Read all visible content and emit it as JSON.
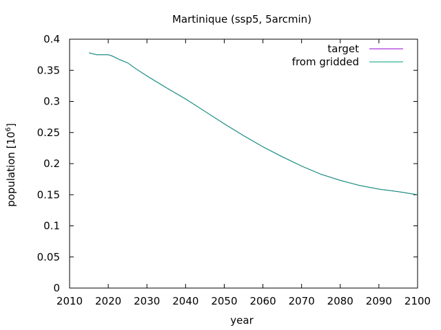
{
  "chart_data": {
    "type": "line",
    "title": "Martinique (ssp5, 5arcmin)",
    "xlabel": "year",
    "ylabel_main": "population [10",
    "ylabel_exp": "6",
    "ylabel_close": "]",
    "xlim": [
      2010,
      2100
    ],
    "ylim": [
      0,
      0.4
    ],
    "xticks": [
      2010,
      2020,
      2030,
      2040,
      2050,
      2060,
      2070,
      2080,
      2090,
      2100
    ],
    "yticks": [
      0,
      0.05,
      0.1,
      0.15,
      0.2,
      0.25,
      0.3,
      0.35,
      0.4
    ],
    "xtick_labels": [
      "2010",
      "2020",
      "2030",
      "2040",
      "2050",
      "2060",
      "2070",
      "2080",
      "2090",
      "2100"
    ],
    "ytick_labels": [
      "0",
      "0.05",
      "0.1",
      "0.15",
      "0.2",
      "0.25",
      "0.3",
      "0.35",
      "0.4"
    ],
    "grid": false,
    "legend_position": "top-right",
    "series": [
      {
        "name": "target",
        "color": "#9400d3",
        "x": [
          2015,
          2017,
          2020,
          2021,
          2023,
          2025,
          2027,
          2030,
          2035,
          2040,
          2045,
          2050,
          2055,
          2060,
          2065,
          2070,
          2075,
          2080,
          2085,
          2090,
          2095,
          2100
        ],
        "y": [
          0.378,
          0.375,
          0.375,
          0.373,
          0.367,
          0.362,
          0.353,
          0.341,
          0.322,
          0.304,
          0.284,
          0.264,
          0.245,
          0.227,
          0.211,
          0.196,
          0.183,
          0.173,
          0.165,
          0.159,
          0.155,
          0.15
        ]
      },
      {
        "name": "from gridded",
        "color": "#009e73",
        "x": [
          2015,
          2017,
          2020,
          2021,
          2023,
          2025,
          2027,
          2030,
          2035,
          2040,
          2045,
          2050,
          2055,
          2060,
          2065,
          2070,
          2075,
          2080,
          2085,
          2090,
          2095,
          2100
        ],
        "y": [
          0.378,
          0.375,
          0.375,
          0.373,
          0.367,
          0.362,
          0.353,
          0.341,
          0.322,
          0.304,
          0.284,
          0.264,
          0.245,
          0.227,
          0.211,
          0.196,
          0.183,
          0.173,
          0.165,
          0.159,
          0.155,
          0.15
        ]
      }
    ]
  }
}
